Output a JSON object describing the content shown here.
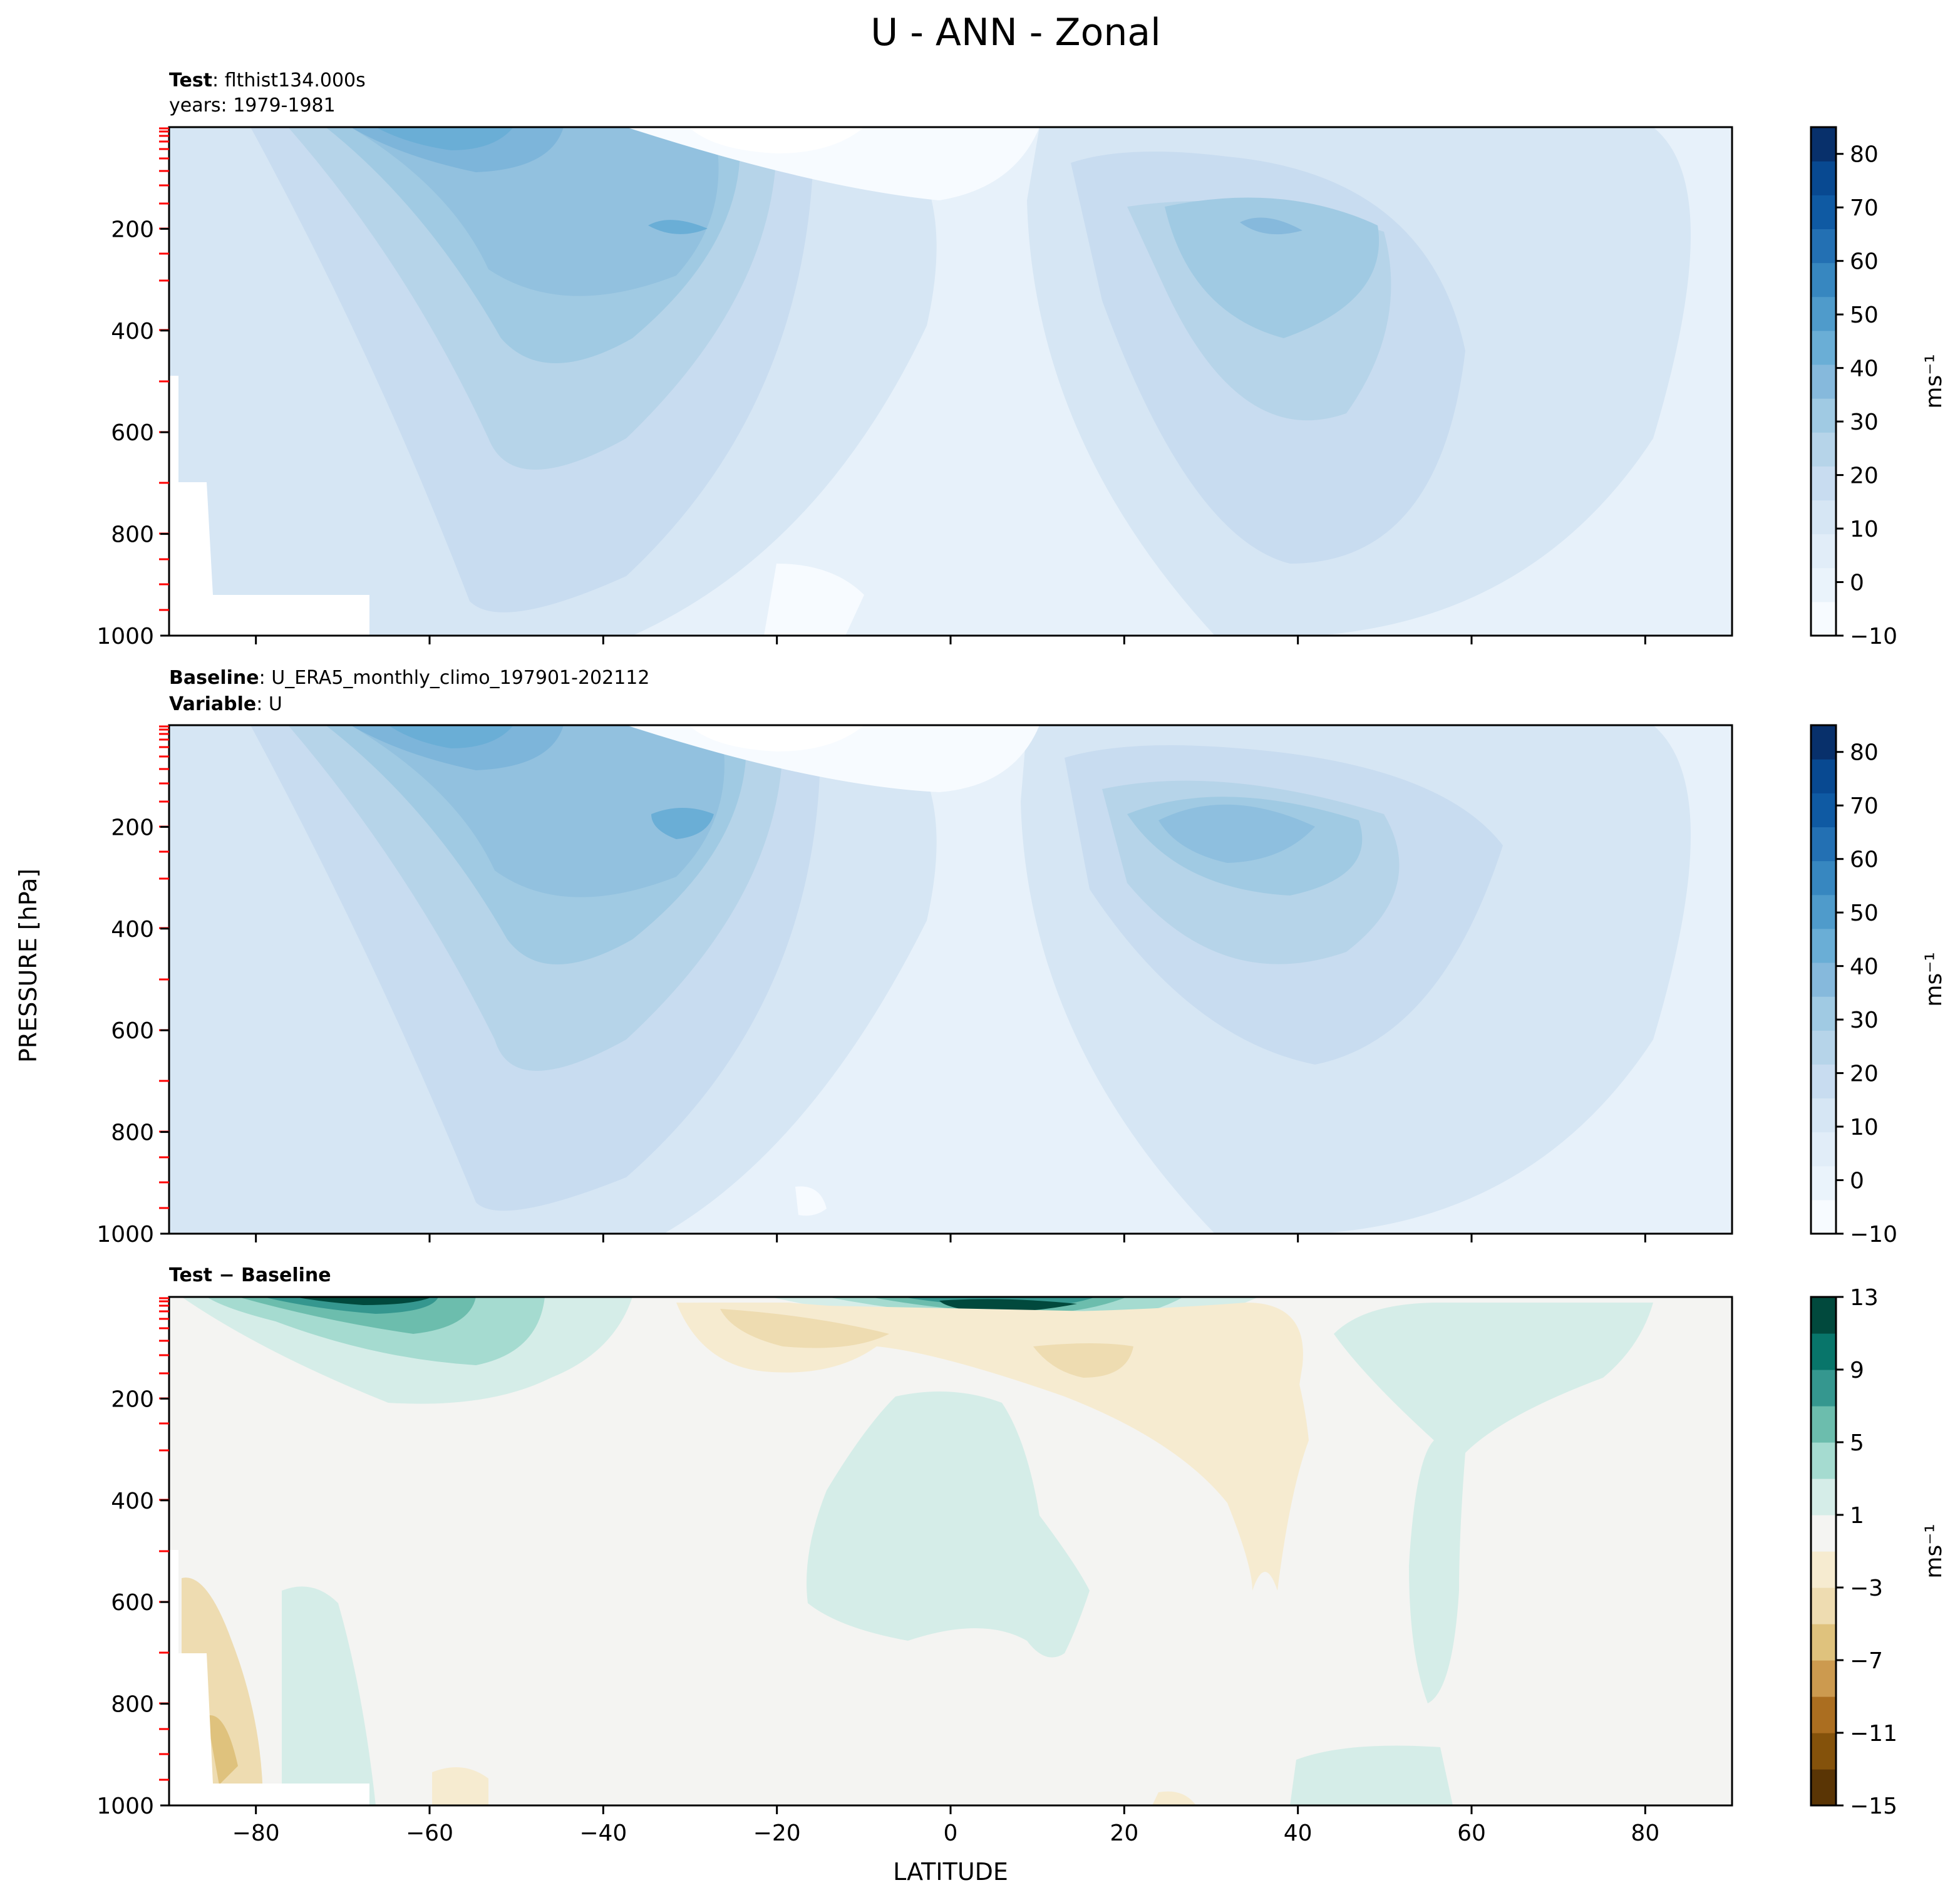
{
  "figure": {
    "title": "U - ANN - Zonal",
    "xlabel": "LATITUDE",
    "ylabel": "PRESSURE [hPa]"
  },
  "colors": {
    "blues": [
      "#f7fbff",
      "#eaf3fb",
      "#e1edf8",
      "#d6e6f4",
      "#c8dcf0",
      "#b6d4e9",
      "#a0cae3",
      "#86b9dc",
      "#6aaed6",
      "#4f9bcb",
      "#3787c0",
      "#2370b3",
      "#0f5aa3",
      "#084991",
      "#08306b"
    ],
    "diverging": [
      "#5a3505",
      "#84520b",
      "#ab6e20",
      "#cc9a4f",
      "#dfc27d",
      "#eedcb1",
      "#f6ebd0",
      "#f4f4f2",
      "#d5ede8",
      "#a5dbd0",
      "#6cbdad",
      "#35978f",
      "#08756a",
      "#01493d"
    ],
    "tick_marks": "#ff0000"
  },
  "chart_data": [
    {
      "type": "heatmap",
      "id": "test",
      "label_bold": "Test",
      "label_text": "flthist134.000s",
      "label2_bold": "",
      "label2_text": "years: 1979-1981",
      "xlim": [
        -90,
        90
      ],
      "ylim": [
        1000,
        0
      ],
      "yticks": [
        200,
        400,
        600,
        800,
        1000
      ],
      "colorbar": {
        "levels": [
          -10,
          0,
          10,
          20,
          30,
          40,
          50,
          60,
          70,
          80
        ],
        "range": [
          -10,
          85
        ],
        "unit": "ms⁻¹"
      },
      "jets": [
        {
          "lat": -31,
          "p": 200,
          "value": 40
        },
        {
          "lat": 35,
          "p": 200,
          "value": 32
        }
      ]
    },
    {
      "type": "heatmap",
      "id": "baseline",
      "label_bold": "Baseline",
      "label_text": "U_ERA5_monthly_climo_197901-202112",
      "label2_bold": "Variable",
      "label2_text": "U",
      "xlim": [
        -90,
        90
      ],
      "ylim": [
        1000,
        0
      ],
      "yticks": [
        200,
        400,
        600,
        800,
        1000
      ],
      "colorbar": {
        "levels": [
          -10,
          0,
          10,
          20,
          30,
          40,
          50,
          60,
          70,
          80
        ],
        "range": [
          -10,
          85
        ],
        "unit": "ms⁻¹"
      },
      "jets": [
        {
          "lat": -30,
          "p": 200,
          "value": 40
        },
        {
          "lat": 36,
          "p": 200,
          "value": 38
        }
      ]
    },
    {
      "type": "heatmap",
      "id": "diff",
      "label_bold": "Test − Baseline",
      "label_text": "",
      "label2_bold": "",
      "label2_text": "",
      "xlim": [
        -90,
        90
      ],
      "ylim": [
        1000,
        0
      ],
      "xticks": [
        -80,
        -60,
        -40,
        -20,
        0,
        20,
        40,
        60,
        80
      ],
      "yticks": [
        200,
        400,
        600,
        800,
        1000
      ],
      "colorbar": {
        "levels": [
          -15,
          -11,
          -7,
          -3,
          1,
          5,
          9,
          13
        ],
        "range": [
          -15,
          13
        ],
        "unit": "ms⁻¹"
      }
    }
  ]
}
